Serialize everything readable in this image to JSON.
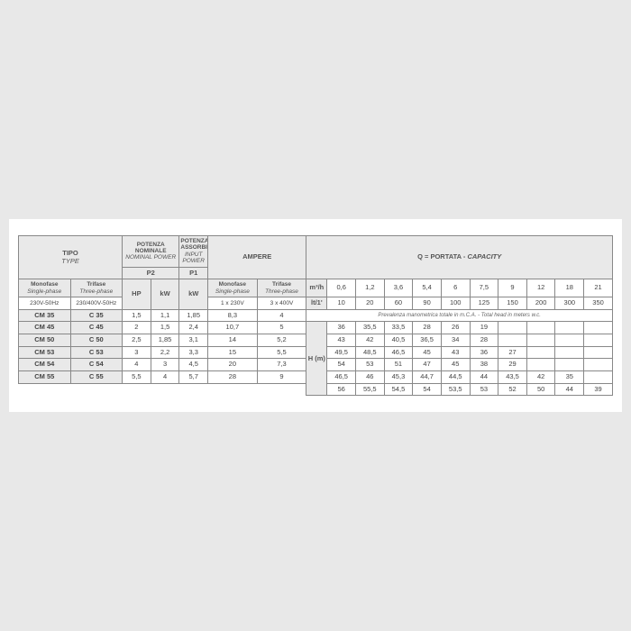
{
  "headers": {
    "tipo": "TIPO",
    "tipo_it": "TYPE",
    "p2top": "POTENZA NOMINALE",
    "p2top_it": "NOMINAL POWER",
    "p1top": "POTENZA ASSORBITA",
    "p1top_it": "INPUT POWER",
    "amp": "AMPERE",
    "cap": "Q = PORTATA - ",
    "cap_it": "CAPACITY",
    "mono": "Monofase",
    "mono_it": "Single-phase",
    "tri": "Trifase",
    "tri_it": "Three-phase",
    "p2": "P2",
    "p1": "P1",
    "hp": "HP",
    "kw": "kW",
    "v1": "230V-50Hz",
    "v3": "230/400V-50Hz",
    "a1": "1 x 230V",
    "a3": "3 x 400V",
    "m3h": "m³/h",
    "lt": "lt/1'",
    "Hm": "H (m)",
    "prev": "Prevalenza manometrica totale in m.C.A. - Total head in meters w.c."
  },
  "q_m3h": [
    "0,6",
    "1,2",
    "3,6",
    "5,4",
    "6",
    "7,5",
    "9",
    "12",
    "18",
    "21"
  ],
  "q_lt": [
    "10",
    "20",
    "60",
    "90",
    "100",
    "125",
    "150",
    "200",
    "300",
    "350"
  ],
  "rows": [
    {
      "m": "CM 35",
      "t": "C 35",
      "hp": "1,5",
      "kw2": "1,1",
      "kw1": "1,85",
      "a1": "8,3",
      "a3": "4",
      "h": [
        "36",
        "35,5",
        "33,5",
        "28",
        "26",
        "19",
        "",
        "",
        "",
        ""
      ]
    },
    {
      "m": "CM 45",
      "t": "C 45",
      "hp": "2",
      "kw2": "1,5",
      "kw1": "2,4",
      "a1": "10,7",
      "a3": "5",
      "h": [
        "43",
        "42",
        "40,5",
        "36,5",
        "34",
        "28",
        "",
        "",
        "",
        ""
      ]
    },
    {
      "m": "CM 50",
      "t": "C 50",
      "hp": "2,5",
      "kw2": "1,85",
      "kw1": "3,1",
      "a1": "14",
      "a3": "5,2",
      "h": [
        "49,5",
        "48,5",
        "46,5",
        "45",
        "43",
        "36",
        "27",
        "",
        "",
        ""
      ]
    },
    {
      "m": "CM 53",
      "t": "C 53",
      "hp": "3",
      "kw2": "2,2",
      "kw1": "3,3",
      "a1": "15",
      "a3": "5,5",
      "h": [
        "54",
        "53",
        "51",
        "47",
        "45",
        "38",
        "29",
        "",
        "",
        ""
      ]
    },
    {
      "m": "CM 54",
      "t": "C 54",
      "hp": "4",
      "kw2": "3",
      "kw1": "4,5",
      "a1": "20",
      "a3": "7,3",
      "h": [
        "46,5",
        "46",
        "45,3",
        "44,7",
        "44,5",
        "44",
        "43,5",
        "42",
        "35",
        ""
      ]
    },
    {
      "m": "CM 55",
      "t": "C 55",
      "hp": "5,5",
      "kw2": "4",
      "kw1": "5,7",
      "a1": "28",
      "a3": "9",
      "h": [
        "56",
        "55,5",
        "54,5",
        "54",
        "53,5",
        "53",
        "52",
        "50",
        "44",
        "39"
      ]
    }
  ]
}
